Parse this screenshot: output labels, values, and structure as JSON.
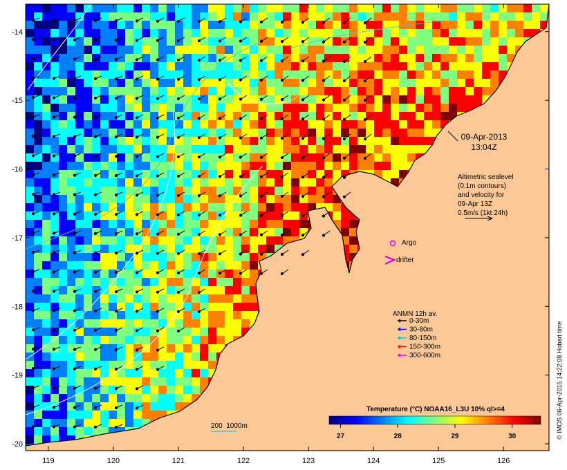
{
  "axes": {
    "x_ticks": [
      "119",
      "120",
      "121",
      "122",
      "123",
      "124",
      "125",
      "126"
    ],
    "y_ticks": [
      "-14",
      "-15",
      "-16",
      "-17",
      "-18",
      "-19",
      "-20"
    ],
    "xlim": [
      118.65,
      126.7
    ],
    "ylim": [
      -20.1,
      -13.6
    ]
  },
  "annotations": {
    "date_line1": "09-Apr-2013",
    "date_line2": "13:04Z",
    "altimetry_lines": [
      "Altimetric sealevel",
      "(0.1m contours)",
      "and velocity for",
      "09-Apr 13Z",
      "0.5m/s (1kt 24h)"
    ],
    "argo_label": "Argo",
    "drifter_label": "drifter",
    "anmn_title": "ANMN 12h av.",
    "anmn_items": [
      {
        "label": "0-30m",
        "color": "#000000"
      },
      {
        "label": "30-80m",
        "color": "#0000ff"
      },
      {
        "label": "80-150m",
        "color": "#00cccc"
      },
      {
        "label": "150-300m",
        "color": "#ff0000"
      },
      {
        "label": "300-600m",
        "color": "#ff00ff"
      }
    ],
    "bathy_label": "200  1000m",
    "credit": "© IMOS 06-Apr-2015 14:22:08 Hobart time"
  },
  "colorbar": {
    "title": "Temperature (°C) NOAA16_L3U 10% ql>=4",
    "ticks": [
      "27",
      "28",
      "29",
      "30"
    ],
    "range": [
      26.8,
      30.5
    ],
    "colors": [
      "#00007f",
      "#0000ff",
      "#007fff",
      "#00ffff",
      "#7fff7f",
      "#ffff00",
      "#ff7f00",
      "#ff0000",
      "#7f0000"
    ]
  },
  "colors": {
    "land": "#fcc896",
    "coast": "#000000",
    "contour": "#ffffff",
    "bathy": "#4dc8c8",
    "argo": "#dd00dd"
  }
}
